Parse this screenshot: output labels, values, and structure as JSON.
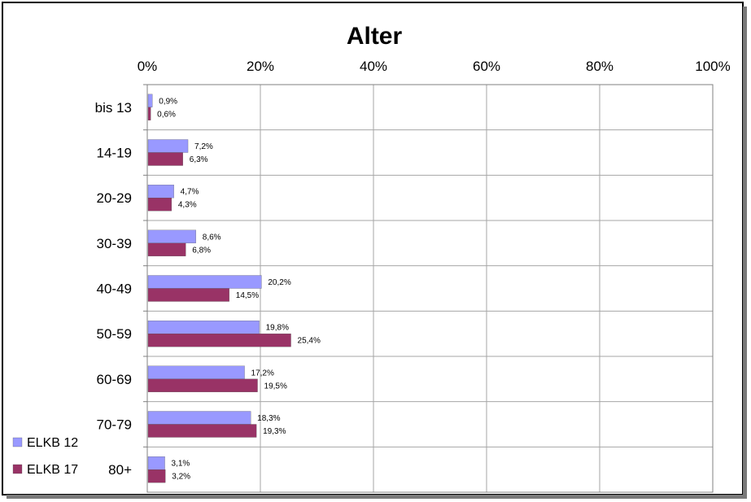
{
  "chart_data": {
    "type": "bar",
    "orientation": "horizontal",
    "title": "Alter",
    "xlabel": "",
    "ylabel": "",
    "xlim": [
      0,
      100
    ],
    "x_ticks": [
      "0%",
      "20%",
      "40%",
      "60%",
      "80%",
      "100%"
    ],
    "x_tick_values": [
      0,
      20,
      40,
      60,
      80,
      100
    ],
    "grid": true,
    "legend_position": "bottom-left",
    "categories": [
      "bis 13",
      "14-19",
      "20-29",
      "30-39",
      "40-49",
      "50-59",
      "60-69",
      "70-79",
      "80+"
    ],
    "series": [
      {
        "name": "ELKB 12",
        "color": "#9999ff",
        "values": [
          0.9,
          7.2,
          4.7,
          8.6,
          20.2,
          19.8,
          17.2,
          18.3,
          3.1
        ],
        "labels": [
          "0,9%",
          "7,2%",
          "4,7%",
          "8,6%",
          "20,2%",
          "19,8%",
          "17,2%",
          "18,3%",
          "3,1%"
        ]
      },
      {
        "name": "ELKB 17",
        "color": "#993366",
        "values": [
          0.6,
          6.3,
          4.3,
          6.8,
          14.5,
          25.4,
          19.5,
          19.3,
          3.2
        ],
        "labels": [
          "0,6%",
          "6,3%",
          "4,3%",
          "6,8%",
          "14,5%",
          "25,4%",
          "19,5%",
          "19,3%",
          "3,2%"
        ]
      }
    ]
  }
}
